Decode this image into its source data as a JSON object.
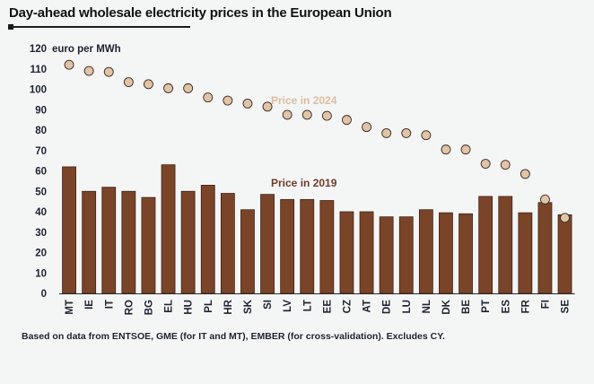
{
  "title": "Day-ahead wholesale electricity prices in the European Union",
  "footnote": "Based on data from ENTSOE, GME (for IT and MT), EMBER (for cross-validation). Excludes CY.",
  "colors": {
    "bar": "#7a4429",
    "bar_stroke": "#3f2214",
    "dot": "#dfc4a8",
    "dot_stroke": "#3c2a1e",
    "label_2024": "#dbbd9f",
    "label_2019": "#6e3d26",
    "axis_text": "#1d2430"
  },
  "chart_data": {
    "type": "bar",
    "ylabel": "euro per MWh",
    "ylim": [
      0,
      120
    ],
    "yticks": [
      0,
      10,
      20,
      30,
      40,
      50,
      60,
      70,
      80,
      90,
      100,
      110,
      120
    ],
    "grid": false,
    "categories": [
      "MT",
      "IE",
      "IT",
      "RO",
      "BG",
      "EL",
      "HU",
      "PL",
      "HR",
      "SK",
      "SI",
      "LV",
      "LT",
      "EE",
      "CZ",
      "AT",
      "DE",
      "LU",
      "NL",
      "DK",
      "BE",
      "PT",
      "ES",
      "FR",
      "FI",
      "SE"
    ],
    "series": [
      {
        "name": "Price in 2019",
        "kind": "bar",
        "values": [
          62,
          50,
          52,
          50,
          47,
          63,
          50,
          53,
          49,
          41,
          48.5,
          46,
          46,
          45.5,
          40,
          40,
          37.5,
          37.5,
          41,
          39.5,
          39,
          47.5,
          47.5,
          39.5,
          44.5,
          38.5
        ]
      },
      {
        "name": "Price in 2024",
        "kind": "scatter",
        "values": [
          112,
          109,
          108.5,
          103.5,
          102.5,
          100.5,
          100.5,
          96,
          94.5,
          93,
          91.5,
          87.5,
          87.5,
          87,
          85,
          81.5,
          78.5,
          78.5,
          77.5,
          70.5,
          70.5,
          63.5,
          63,
          58.5,
          46,
          37
        ]
      }
    ]
  }
}
